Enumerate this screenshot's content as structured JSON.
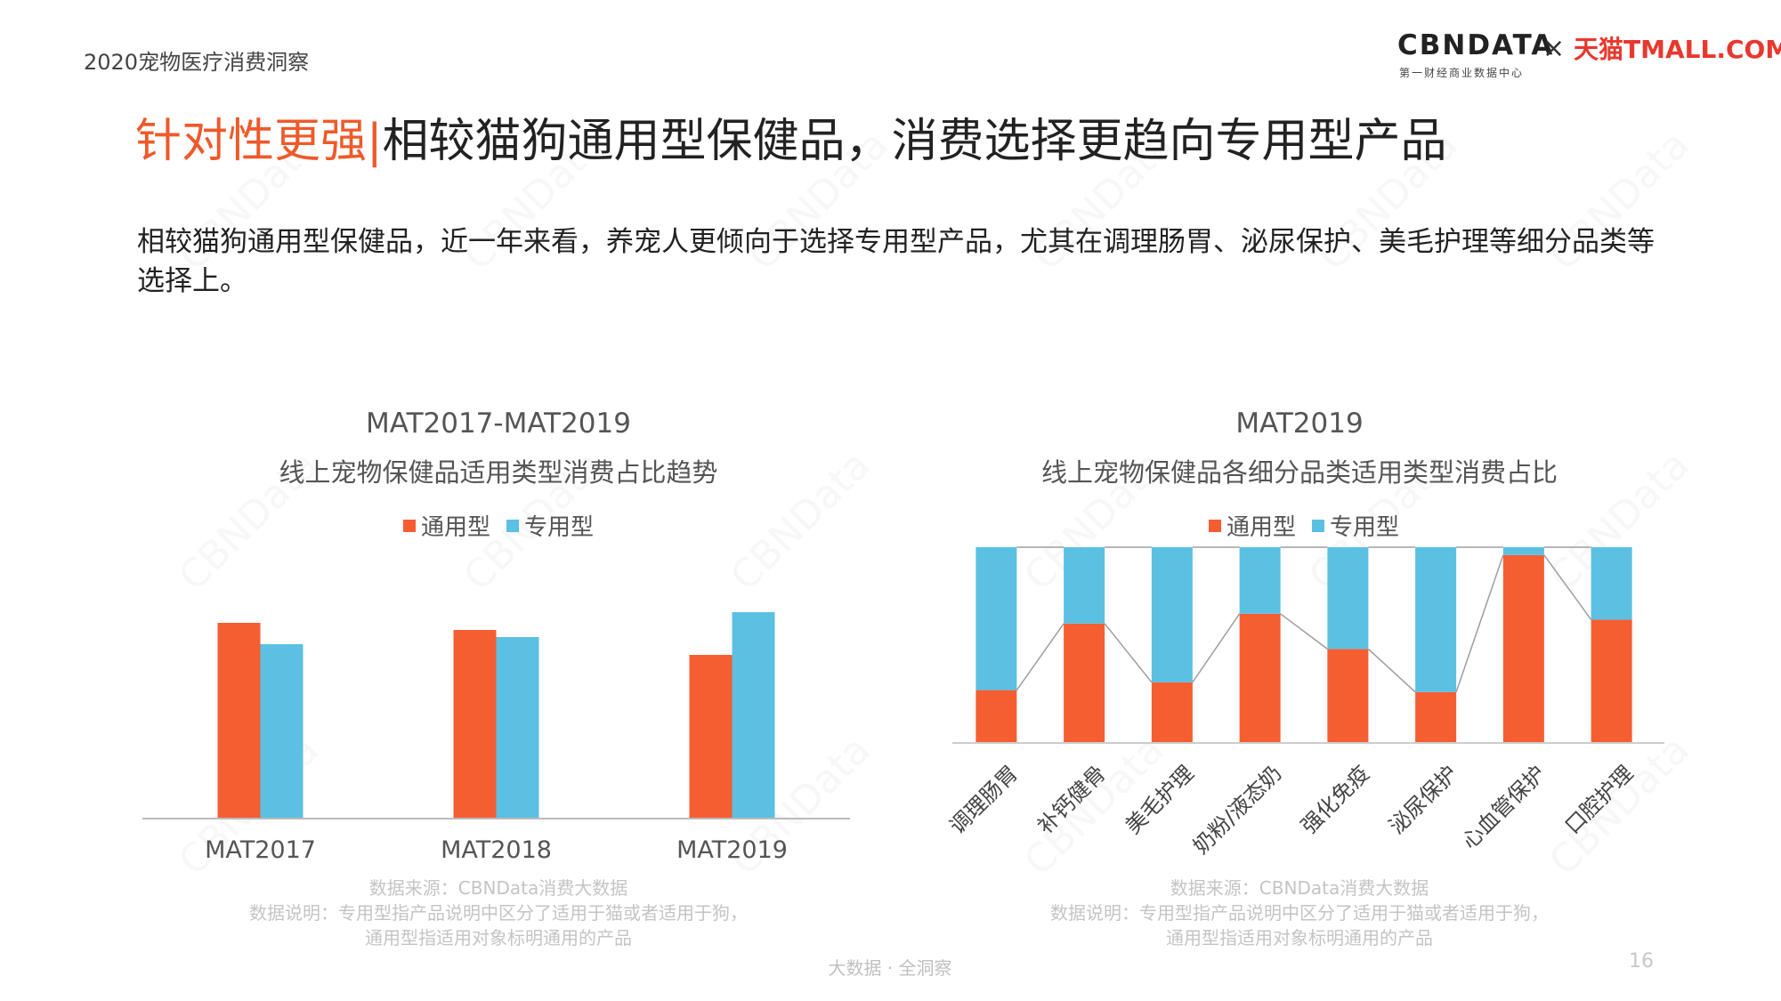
{
  "header": {
    "doc_label": "2020宠物医疗消费洞察",
    "logo_cbn": "CBNDATA",
    "logo_cbn_sub": "第一财经商业数据中心",
    "logo_x": "×",
    "logo_tmall": "天猫TMALL.COM"
  },
  "headline": {
    "accent": "针对性更强",
    "sep": "|",
    "main": "相较猫狗通用型保健品，消费选择更趋向专用型产品"
  },
  "summary": "相较猫狗通用型保健品，近一年来看，养宠人更倾向于选择专用型产品，尤其在调理肠胃、泌尿保护、美毛护理等细分品类等选择上。",
  "watermark_text": "CBNData",
  "colors": {
    "general": "#f45e31",
    "special": "#5bc0e2"
  },
  "chart_data": [
    {
      "type": "bar",
      "title": "MAT2017-MAT2019",
      "subtitle": "线上宠物保健品适用类型消费占比趋势",
      "categories": [
        "MAT2017",
        "MAT2018",
        "MAT2019"
      ],
      "series": [
        {
          "name": "通用型",
          "values": [
            55,
            53,
            46
          ]
        },
        {
          "name": "专用型",
          "values": [
            49,
            51,
            58
          ]
        }
      ],
      "ylim": [
        0,
        70
      ],
      "grid": false,
      "legend": "top-center"
    },
    {
      "type": "bar",
      "stacked": true,
      "percent": true,
      "title": "MAT2019",
      "subtitle": "线上宠物保健品各细分品类适用类型消费占比",
      "categories": [
        "调理肠胃",
        "补钙健骨",
        "美毛护理",
        "奶粉/液态奶",
        "强化免疫",
        "泌尿保护",
        "心血管保护",
        "口腔护理"
      ],
      "series": [
        {
          "name": "通用型",
          "values": [
            27,
            61,
            31,
            66,
            48,
            26,
            96,
            63
          ]
        },
        {
          "name": "专用型",
          "values": [
            73,
            39,
            69,
            34,
            52,
            74,
            4,
            37
          ]
        }
      ],
      "ylim": [
        0,
        100
      ],
      "grid": false,
      "legend": "top-center"
    }
  ],
  "notes": {
    "source": "数据来源：CBNData消费大数据",
    "explain1": "数据说明：专用型指产品说明中区分了适用于猫或者适用于狗，",
    "explain2": "通用型指适用对象标明通用的产品"
  },
  "footer": {
    "slogan": "大数据 · 全洞察",
    "page": "16"
  }
}
